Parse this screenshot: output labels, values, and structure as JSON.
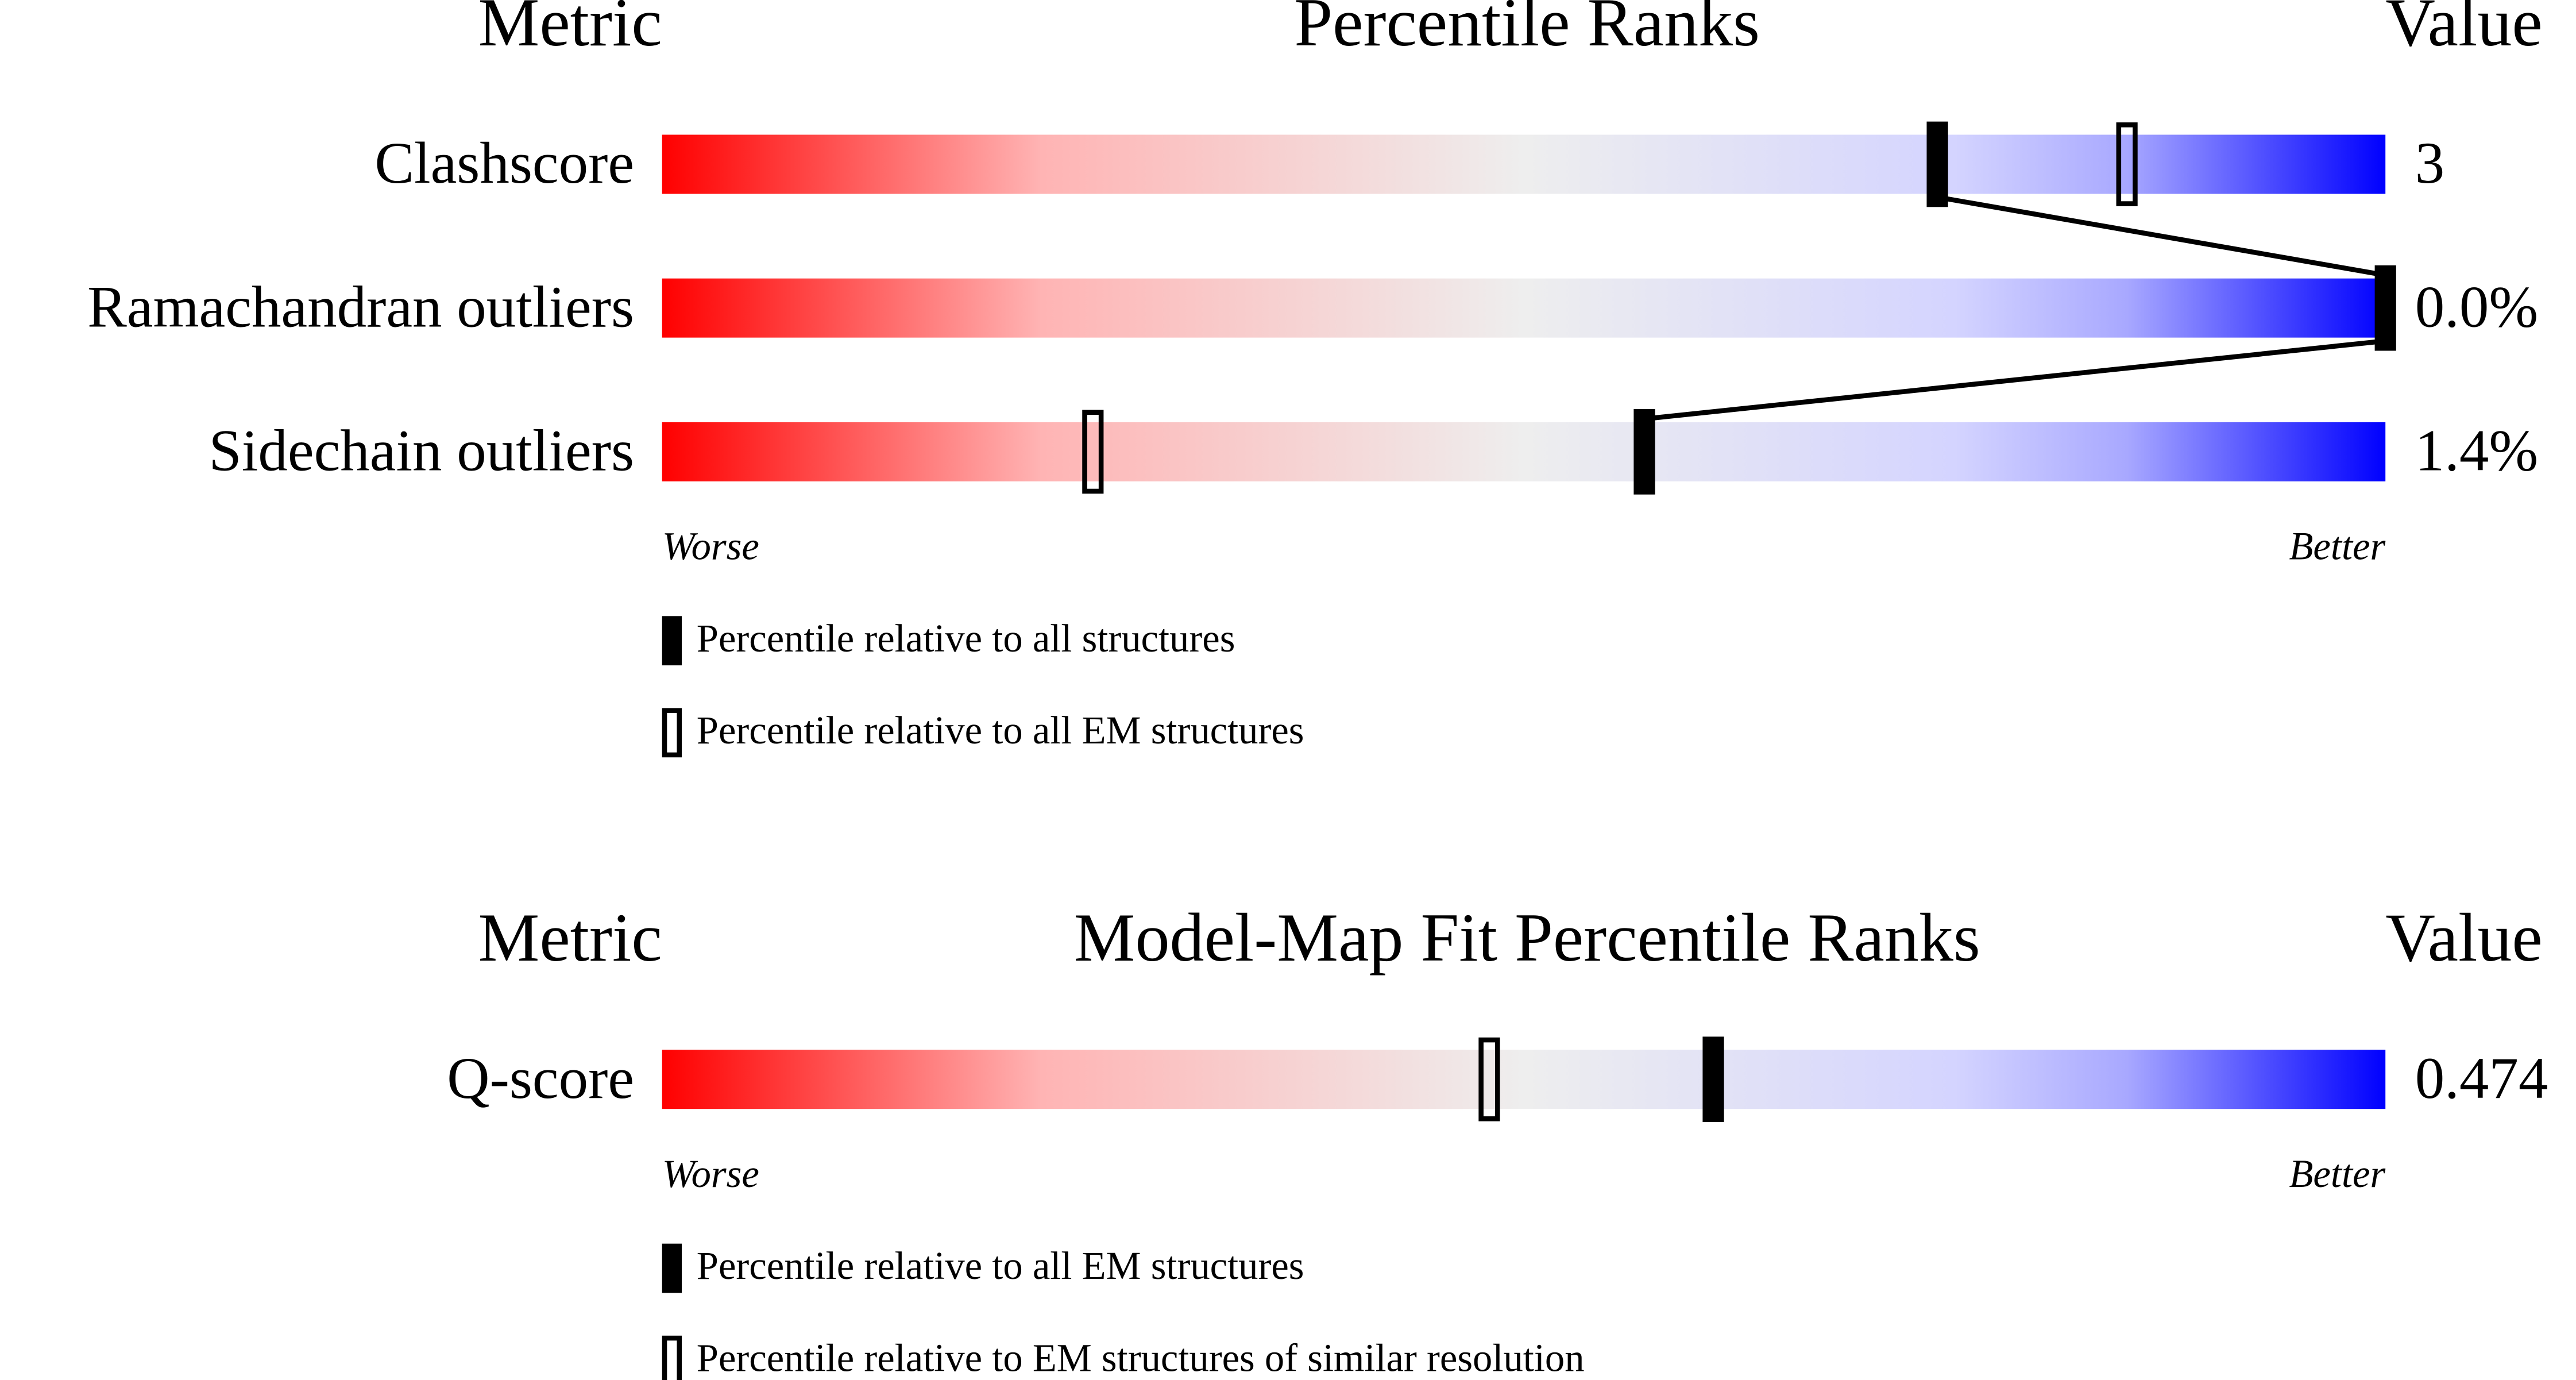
{
  "chart_data": [
    {
      "type": "percentile",
      "title": "Percentile Ranks",
      "metric_header": "Metric",
      "value_header": "Value",
      "categories": [
        "Clashscore",
        "Ramachandran outliers",
        "Sidechain outliers"
      ],
      "metric_values": [
        "3",
        "0.0%",
        "1.4%"
      ],
      "xlim": [
        0,
        100
      ],
      "worse_label": "Worse",
      "better_label": "Better",
      "connect_filled": true,
      "series": [
        {
          "name": "Percentile relative to all structures",
          "style": "filled",
          "color": "#000000",
          "values": [
            74,
            100,
            57
          ]
        },
        {
          "name": "Percentile relative to all EM structures",
          "style": "open",
          "color": "#000000",
          "values": [
            85,
            null,
            25
          ]
        }
      ]
    },
    {
      "type": "percentile",
      "title": "Model-Map Fit Percentile Ranks",
      "metric_header": "Metric",
      "value_header": "Value",
      "categories": [
        "Q-score"
      ],
      "metric_values": [
        "0.474"
      ],
      "xlim": [
        0,
        100
      ],
      "worse_label": "Worse",
      "better_label": "Better",
      "connect_filled": false,
      "series": [
        {
          "name": "Percentile relative to all EM structures",
          "style": "filled",
          "color": "#000000",
          "values": [
            61
          ]
        },
        {
          "name": "Percentile relative to EM structures of similar resolution",
          "style": "open",
          "color": "#000000",
          "values": [
            48
          ]
        }
      ]
    }
  ]
}
